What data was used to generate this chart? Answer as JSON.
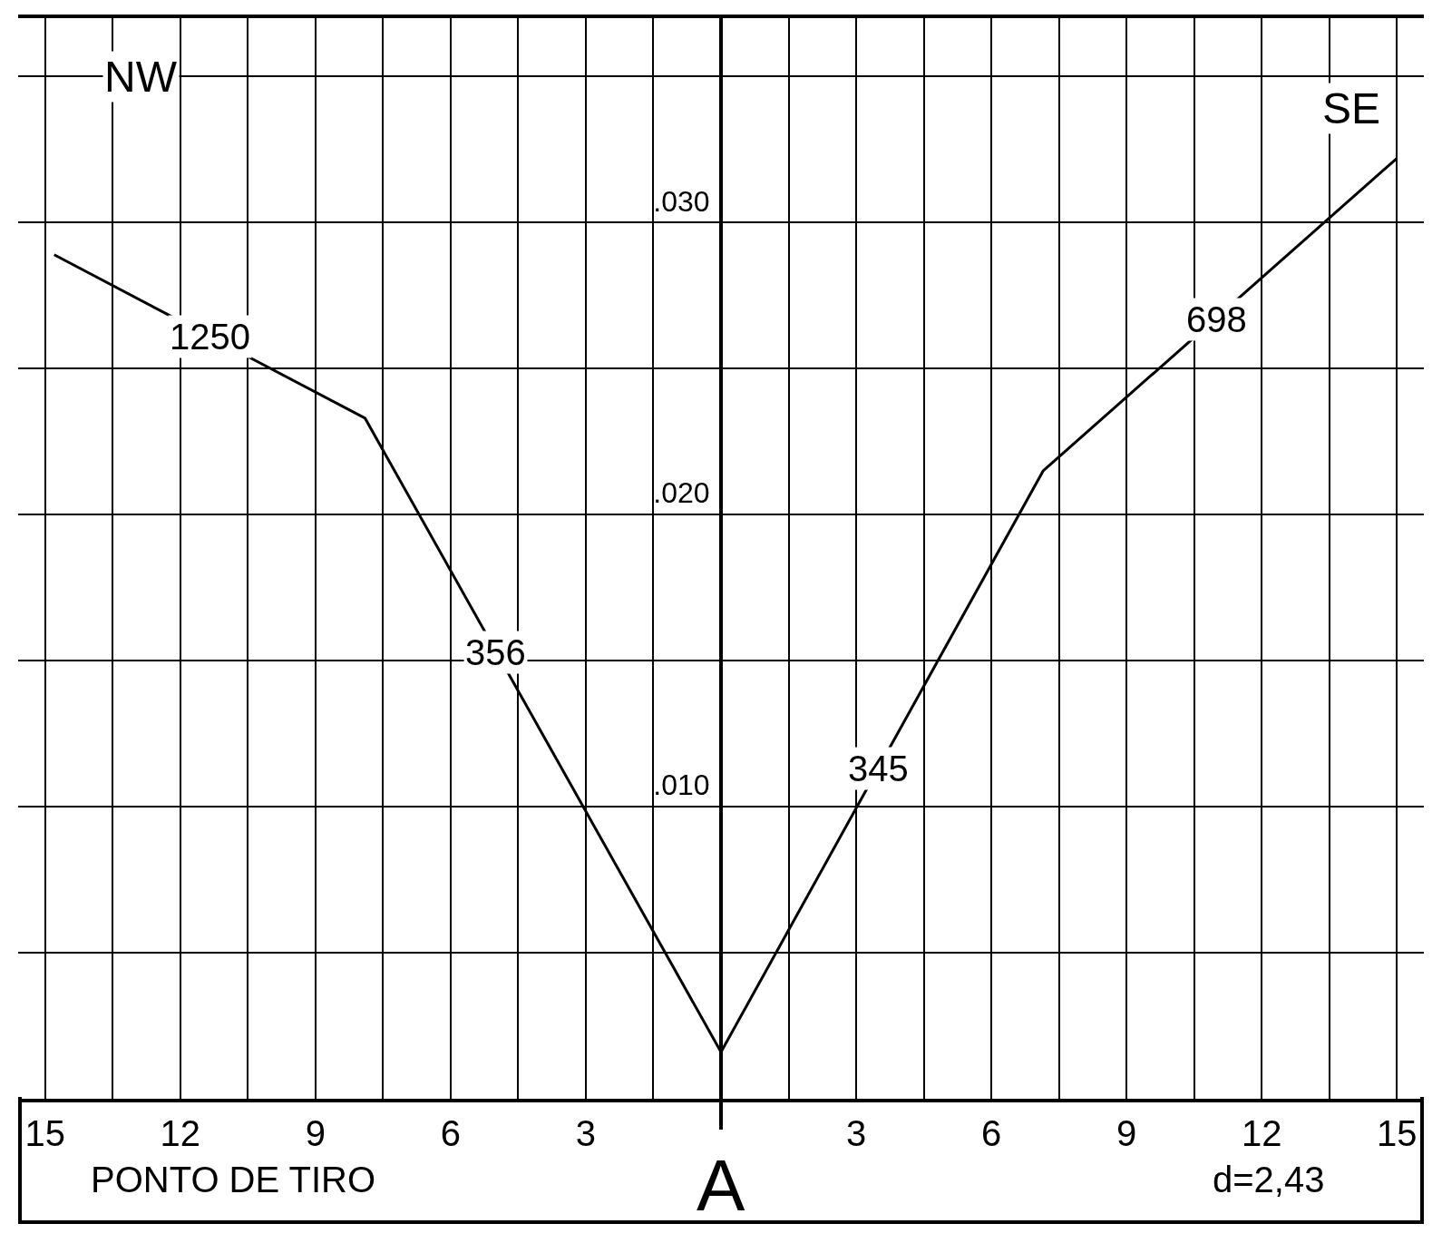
{
  "chart_data": {
    "type": "line",
    "series": [
      {
        "color": "#000000",
        "x": [
          -14.8,
          -7.9,
          0
        ],
        "values": [
          0.0289,
          0.0233,
          0.0016
        ]
      },
      {
        "color": "#000000",
        "x": [
          0,
          7.15,
          15
        ],
        "values": [
          0.0016,
          0.0215,
          0.0322
        ]
      }
    ],
    "xlim": [
      -15.6,
      15.6
    ],
    "ylim": [
      0,
      0.037
    ],
    "xticks": [
      {
        "value": -15,
        "label": "15"
      },
      {
        "value": -13.5,
        "label": null
      },
      {
        "value": -12,
        "label": "12"
      },
      {
        "value": -10.5,
        "label": null
      },
      {
        "value": -9,
        "label": "9"
      },
      {
        "value": -7.5,
        "label": null
      },
      {
        "value": -6,
        "label": "6"
      },
      {
        "value": -4.5,
        "label": null
      },
      {
        "value": -3,
        "label": "3"
      },
      {
        "value": -1.5,
        "label": null
      },
      {
        "value": 0,
        "label": null
      },
      {
        "value": 1.5,
        "label": null
      },
      {
        "value": 3,
        "label": "3"
      },
      {
        "value": 4.5,
        "label": null
      },
      {
        "value": 6,
        "label": "6"
      },
      {
        "value": 7.5,
        "label": null
      },
      {
        "value": 9,
        "label": "9"
      },
      {
        "value": 10.5,
        "label": null
      },
      {
        "value": 12,
        "label": "12"
      },
      {
        "value": 13.5,
        "label": null
      },
      {
        "value": 15,
        "label": "15"
      }
    ],
    "yticks": [
      {
        "value": 0.005,
        "label": null
      },
      {
        "value": 0.01,
        "label": ".010"
      },
      {
        "value": 0.015,
        "label": null
      },
      {
        "value": 0.02,
        "label": ".020"
      },
      {
        "value": 0.025,
        "label": null
      },
      {
        "value": 0.03,
        "label": ".030"
      },
      {
        "value": 0.035,
        "label": null
      }
    ],
    "grid": true,
    "marker": "none",
    "line_style": "solid",
    "annotations": [
      "NW",
      "SE",
      {
        "text": "1250",
        "x": -11.35,
        "y": 0.0261
      },
      {
        "text": "356",
        "x": -5,
        "y": 0.0153
      },
      {
        "text": "345",
        "x": 3.5,
        "y": 0.0113
      },
      {
        "text": "698",
        "x": 11,
        "y": 0.0267
      },
      "PONTO DE TIRO",
      "A",
      "d=2,43"
    ]
  }
}
